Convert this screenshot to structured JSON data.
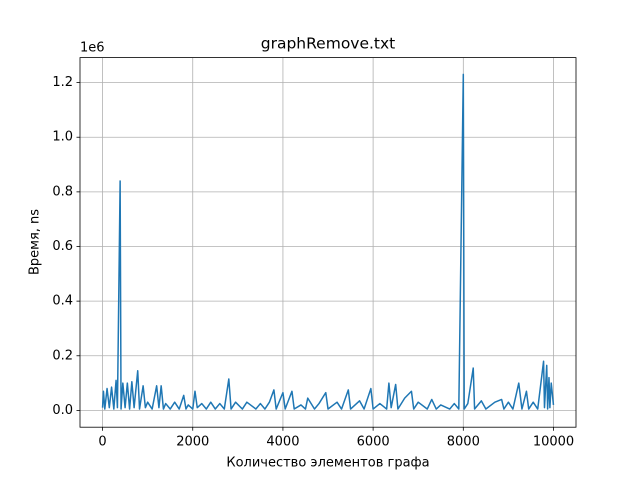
{
  "chart_data": {
    "type": "line",
    "title": "graphRemove.txt",
    "x_label": "Количество элементов графа",
    "y_label": "Время, ns",
    "y_offset_label": "1e6",
    "color": "#1f77b4",
    "grid": true,
    "xlim": [
      -500,
      10499
    ],
    "xticks": [
      0,
      2000,
      4000,
      6000,
      8000,
      10000
    ],
    "ylim": [
      -0.0615,
      1.2915
    ],
    "yticks": [
      {
        "value": 0,
        "label": "0.0"
      },
      0.2,
      0.4,
      0.6,
      0.8,
      {
        "value": 1,
        "label": "1.0"
      },
      1.2
    ],
    "x": [
      0,
      20,
      50,
      100,
      150,
      200,
      250,
      300,
      330,
      390,
      410,
      450,
      500,
      550,
      600,
      650,
      700,
      780,
      820,
      900,
      950,
      1000,
      1100,
      1200,
      1250,
      1300,
      1350,
      1400,
      1500,
      1600,
      1700,
      1800,
      1850,
      1900,
      2000,
      2050,
      2100,
      2200,
      2300,
      2400,
      2500,
      2600,
      2700,
      2800,
      2850,
      2950,
      3100,
      3200,
      3400,
      3500,
      3600,
      3700,
      3800,
      3850,
      4000,
      4050,
      4200,
      4250,
      4400,
      4500,
      4550,
      4700,
      4800,
      4950,
      5000,
      5200,
      5300,
      5450,
      5500,
      5700,
      5800,
      5950,
      6000,
      6150,
      6300,
      6350,
      6400,
      6500,
      6550,
      6700,
      6850,
      6900,
      7000,
      7200,
      7300,
      7400,
      7500,
      7700,
      7800,
      7900,
      8000,
      8020,
      8100,
      8220,
      8250,
      8400,
      8500,
      8700,
      8850,
      8900,
      9000,
      9100,
      9230,
      9300,
      9400,
      9450,
      9550,
      9650,
      9780,
      9800,
      9850,
      9870,
      9900,
      9920,
      9950,
      9999
    ],
    "values": [
      0.01,
      0.07,
      0.005,
      0.08,
      0.01,
      0.085,
      0.005,
      0.11,
      0.01,
      0.84,
      0.005,
      0.1,
      0.01,
      0.1,
      0.005,
      0.105,
      0.01,
      0.145,
      0.005,
      0.09,
      0.01,
      0.03,
      0.005,
      0.09,
      0.01,
      0.09,
      0.005,
      0.025,
      0.005,
      0.03,
      0.005,
      0.055,
      0.005,
      0.02,
      0.005,
      0.07,
      0.01,
      0.025,
      0.005,
      0.03,
      0.005,
      0.025,
      0.005,
      0.115,
      0.005,
      0.03,
      0.005,
      0.03,
      0.005,
      0.025,
      0.005,
      0.03,
      0.075,
      0.005,
      0.065,
      0.005,
      0.07,
      0.005,
      0.02,
      0.005,
      0.045,
      0.005,
      0.025,
      0.065,
      0.005,
      0.03,
      0.005,
      0.075,
      0.005,
      0.035,
      0.005,
      0.08,
      0.005,
      0.025,
      0.005,
      0.1,
      0.01,
      0.095,
      0.005,
      0.045,
      0.07,
      0.005,
      0.03,
      0.005,
      0.04,
      0.005,
      0.02,
      0.005,
      0.025,
      0.005,
      1.23,
      0.005,
      0.025,
      0.155,
      0.005,
      0.035,
      0.005,
      0.03,
      0.04,
      0.005,
      0.03,
      0.005,
      0.1,
      0.005,
      0.07,
      0.005,
      0.03,
      0.005,
      0.18,
      0.01,
      0.165,
      0.005,
      0.12,
      0.01,
      0.1,
      0.02
    ]
  }
}
